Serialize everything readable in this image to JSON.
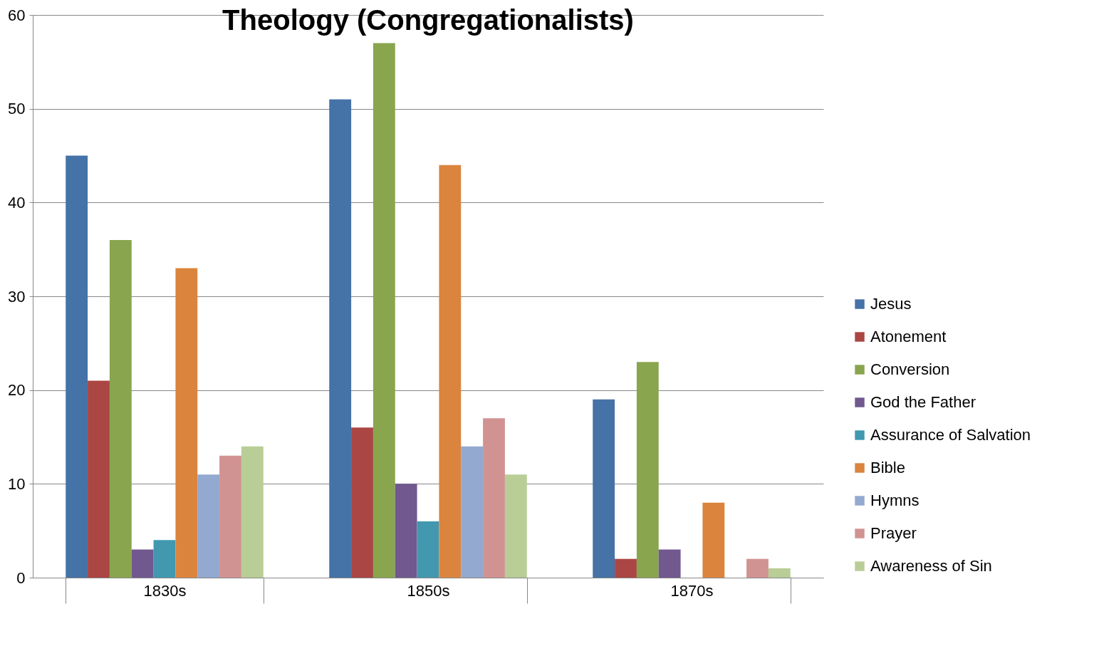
{
  "chart_data": {
    "type": "bar",
    "title": "Theology (Congregationalists)",
    "categories": [
      "1830s",
      "1850s",
      "1870s"
    ],
    "series": [
      {
        "name": "Jesus",
        "color": "#4572a7",
        "values": [
          45,
          51,
          19
        ]
      },
      {
        "name": "Atonement",
        "color": "#aa4643",
        "values": [
          21,
          16,
          2
        ]
      },
      {
        "name": "Conversion",
        "color": "#89a54e",
        "values": [
          36,
          57,
          23
        ]
      },
      {
        "name": "God the Father",
        "color": "#71588f",
        "values": [
          3,
          10,
          3
        ]
      },
      {
        "name": "Assurance of Salvation",
        "color": "#4198af",
        "values": [
          4,
          6,
          0
        ]
      },
      {
        "name": "Bible",
        "color": "#db843d",
        "values": [
          33,
          44,
          8
        ]
      },
      {
        "name": "Hymns",
        "color": "#93a9cf",
        "values": [
          11,
          14,
          0
        ]
      },
      {
        "name": "Prayer",
        "color": "#d19392",
        "values": [
          13,
          17,
          2
        ]
      },
      {
        "name": "Awareness of Sin",
        "color": "#b9cd96",
        "values": [
          14,
          11,
          1
        ]
      }
    ],
    "ylim": [
      0,
      60
    ],
    "yticks": [
      0,
      10,
      20,
      30,
      40,
      50,
      60
    ],
    "grid": "y",
    "legend": "right"
  }
}
